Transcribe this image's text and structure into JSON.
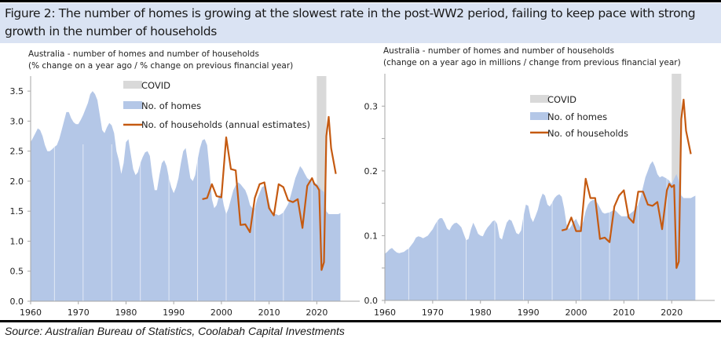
{
  "figure": {
    "title": "Figure 2: The number of homes is growing at the slowest rate in the post-WW2 period, failing to keep pace with strong growth in the number of households",
    "source": "Source: Australian Bureau of Statistics, Coolabah Capital Investments"
  },
  "colors": {
    "homes": "#b4c7e7",
    "households": "#c55a11",
    "covid": "#d9d9d9",
    "title_band": "#dae3f3"
  },
  "chart_data": [
    {
      "type": "area",
      "title": "Australia - number of homes and number of households",
      "subtitle": "(% change on a year ago / % change on previous financial year)",
      "xlabel": "",
      "ylabel": "",
      "xlim": [
        1960,
        2029
      ],
      "ylim": [
        0,
        3.75
      ],
      "xticks": [
        "1960",
        "1970",
        "1980",
        "1990",
        "2000",
        "2010",
        "2020"
      ],
      "yticks": [
        "0.0",
        "0.5",
        "1.0",
        "1.5",
        "2.0",
        "2.5",
        "3.0",
        "3.5"
      ],
      "grid": false,
      "legend": {
        "placement": "top-center",
        "entries": [
          "COVID",
          "No. of homes",
          "No. of households (annual estimates)"
        ]
      },
      "covid_band": [
        2020.0,
        2022.0
      ],
      "series": [
        {
          "name": "No. of homes",
          "type": "area",
          "x": [
            1960,
            1960.5,
            1961,
            1961.5,
            1962,
            1962.5,
            1963,
            1963.5,
            1964,
            1964.5,
            1965,
            1965.5,
            1966,
            1966.5,
            1967,
            1967.5,
            1968,
            1968.5,
            1969,
            1969.5,
            1970,
            1970.5,
            1971,
            1971.5,
            1972,
            1972.5,
            1973,
            1973.5,
            1974,
            1974.5,
            1975,
            1975.5,
            1976,
            1976.5,
            1977,
            1977.5,
            1978,
            1978.5,
            1979,
            1979.5,
            1980,
            1980.5,
            1981,
            1981.5,
            1982,
            1982.5,
            1983,
            1983.5,
            1984,
            1984.5,
            1985,
            1985.5,
            1986,
            1986.5,
            1987,
            1987.5,
            1988,
            1988.5,
            1989,
            1989.5,
            1990,
            1990.5,
            1991,
            1991.5,
            1992,
            1992.5,
            1993,
            1993.5,
            1994,
            1994.5,
            1995,
            1995.5,
            1996,
            1996.5,
            1997,
            1997.5,
            1998,
            1998.5,
            1999,
            1999.5,
            2000,
            2000.5,
            2001,
            2001.5,
            2002,
            2002.5,
            2003,
            2003.5,
            2004,
            2004.5,
            2005,
            2005.5,
            2006,
            2006.5,
            2007,
            2007.5,
            2008,
            2008.5,
            2009,
            2009.5,
            2010,
            2010.5,
            2011,
            2011.5,
            2012,
            2012.5,
            2013,
            2013.5,
            2014,
            2014.5,
            2015,
            2015.5,
            2016,
            2016.5,
            2017,
            2017.5,
            2018,
            2018.5,
            2019,
            2019.5,
            2020,
            2020.5,
            2021,
            2021.5,
            2022,
            2022.5,
            2023,
            2023.5,
            2024,
            2024.5,
            2025
          ],
          "values": [
            2.65,
            2.72,
            2.8,
            2.88,
            2.85,
            2.75,
            2.6,
            2.5,
            2.5,
            2.53,
            2.57,
            2.6,
            2.7,
            2.85,
            3.0,
            3.15,
            3.15,
            3.05,
            2.98,
            2.95,
            2.95,
            3.02,
            3.1,
            3.2,
            3.3,
            3.45,
            3.5,
            3.45,
            3.35,
            3.1,
            2.85,
            2.8,
            2.9,
            2.97,
            2.93,
            2.8,
            2.5,
            2.35,
            2.12,
            2.3,
            2.65,
            2.7,
            2.45,
            2.2,
            2.1,
            2.15,
            2.3,
            2.4,
            2.48,
            2.5,
            2.42,
            2.1,
            1.85,
            1.85,
            2.1,
            2.3,
            2.35,
            2.25,
            2.05,
            1.9,
            1.8,
            1.9,
            2.05,
            2.3,
            2.5,
            2.55,
            2.3,
            2.05,
            2.0,
            2.1,
            2.35,
            2.55,
            2.68,
            2.7,
            2.6,
            2.2,
            1.7,
            1.55,
            1.6,
            1.75,
            1.82,
            1.6,
            1.45,
            1.55,
            1.7,
            1.85,
            1.93,
            1.98,
            1.95,
            1.9,
            1.85,
            1.75,
            1.6,
            1.55,
            1.55,
            1.7,
            1.8,
            1.9,
            1.92,
            1.82,
            1.65,
            1.5,
            1.45,
            1.45,
            1.43,
            1.45,
            1.48,
            1.55,
            1.62,
            1.75,
            1.9,
            2.05,
            2.15,
            2.25,
            2.2,
            2.12,
            2.05,
            2.02,
            2.0,
            1.98,
            1.95,
            1.92,
            1.85,
            1.82,
            1.5,
            1.45,
            1.45,
            1.45,
            1.45,
            1.45,
            1.47
          ]
        },
        {
          "name": "No. of households (annual estimates)",
          "type": "line",
          "x": [
            1996,
            1997,
            1998,
            1999,
            2000,
            2001,
            2002,
            2003,
            2004,
            2005,
            2006,
            2007,
            2008,
            2009,
            2010,
            2011,
            2012,
            2013,
            2014,
            2015,
            2016,
            2017,
            2018,
            2019,
            2019.5,
            2020,
            2020.5,
            2021,
            2021.5,
            2022,
            2022.5,
            2023,
            2024
          ],
          "values": [
            1.7,
            1.72,
            1.95,
            1.75,
            1.73,
            2.73,
            2.2,
            2.18,
            1.27,
            1.28,
            1.15,
            1.72,
            1.95,
            1.98,
            1.55,
            1.43,
            1.95,
            1.9,
            1.68,
            1.65,
            1.7,
            1.22,
            1.92,
            2.05,
            1.95,
            1.92,
            1.85,
            0.52,
            0.65,
            2.75,
            3.07,
            2.55,
            2.12
          ]
        }
      ]
    },
    {
      "type": "area",
      "title": "Australia - number of homes and number of households",
      "subtitle": "(change on a year ago in millions / change from previous financial year)",
      "xlabel": "",
      "ylabel": "",
      "xlim": [
        1960,
        2029
      ],
      "ylim": [
        0,
        0.35
      ],
      "xticks": [
        "1960",
        "1970",
        "1980",
        "1990",
        "2000",
        "2010",
        "2020"
      ],
      "yticks": [
        "0.0",
        "0.1",
        "0.2",
        "0.3"
      ],
      "minor_yticks": [
        0.05,
        0.15,
        0.25
      ],
      "grid": false,
      "legend": {
        "placement": "top-center",
        "entries": [
          "COVID",
          "No. of homes",
          "No. of households"
        ]
      },
      "covid_band": [
        2020.0,
        2022.0
      ],
      "series": [
        {
          "name": "No. of homes",
          "type": "area",
          "x": [
            1960,
            1960.5,
            1961,
            1961.5,
            1962,
            1962.5,
            1963,
            1963.5,
            1964,
            1964.5,
            1965,
            1965.5,
            1966,
            1966.5,
            1967,
            1967.5,
            1968,
            1968.5,
            1969,
            1969.5,
            1970,
            1970.5,
            1971,
            1971.5,
            1972,
            1972.5,
            1973,
            1973.5,
            1974,
            1974.5,
            1975,
            1975.5,
            1976,
            1976.5,
            1977,
            1977.5,
            1978,
            1978.5,
            1979,
            1979.5,
            1980,
            1980.5,
            1981,
            1981.5,
            1982,
            1982.5,
            1983,
            1983.5,
            1984,
            1984.5,
            1985,
            1985.5,
            1986,
            1986.5,
            1987,
            1987.5,
            1988,
            1988.5,
            1989,
            1989.5,
            1990,
            1990.5,
            1991,
            1991.5,
            1992,
            1992.5,
            1993,
            1993.5,
            1994,
            1994.5,
            1995,
            1995.5,
            1996,
            1996.5,
            1997,
            1997.5,
            1998,
            1998.5,
            1999,
            1999.5,
            2000,
            2000.5,
            2001,
            2001.5,
            2002,
            2002.5,
            2003,
            2003.5,
            2004,
            2004.5,
            2005,
            2005.5,
            2006,
            2006.5,
            2007,
            2007.5,
            2008,
            2008.5,
            2009,
            2009.5,
            2010,
            2010.5,
            2011,
            2011.5,
            2012,
            2012.5,
            2013,
            2013.5,
            2014,
            2014.5,
            2015,
            2015.5,
            2016,
            2016.5,
            2017,
            2017.5,
            2018,
            2018.5,
            2019,
            2019.5,
            2020,
            2020.5,
            2021,
            2021.5,
            2022,
            2022.5,
            2023,
            2023.5,
            2024,
            2024.5,
            2025
          ],
          "values": [
            0.072,
            0.075,
            0.079,
            0.081,
            0.077,
            0.074,
            0.073,
            0.074,
            0.075,
            0.078,
            0.08,
            0.085,
            0.09,
            0.097,
            0.099,
            0.098,
            0.096,
            0.098,
            0.1,
            0.105,
            0.11,
            0.117,
            0.123,
            0.127,
            0.127,
            0.12,
            0.111,
            0.108,
            0.115,
            0.119,
            0.12,
            0.117,
            0.113,
            0.103,
            0.093,
            0.095,
            0.11,
            0.12,
            0.112,
            0.103,
            0.1,
            0.099,
            0.107,
            0.113,
            0.117,
            0.122,
            0.124,
            0.118,
            0.097,
            0.094,
            0.108,
            0.12,
            0.125,
            0.123,
            0.114,
            0.104,
            0.102,
            0.108,
            0.13,
            0.148,
            0.146,
            0.128,
            0.121,
            0.13,
            0.14,
            0.155,
            0.165,
            0.162,
            0.148,
            0.145,
            0.151,
            0.158,
            0.162,
            0.164,
            0.16,
            0.142,
            0.118,
            0.11,
            0.115,
            0.122,
            0.126,
            0.118,
            0.112,
            0.122,
            0.138,
            0.148,
            0.153,
            0.155,
            0.155,
            0.15,
            0.143,
            0.136,
            0.134,
            0.135,
            0.136,
            0.138,
            0.14,
            0.137,
            0.133,
            0.13,
            0.13,
            0.13,
            0.132,
            0.135,
            0.138,
            0.143,
            0.148,
            0.16,
            0.175,
            0.19,
            0.2,
            0.21,
            0.215,
            0.207,
            0.195,
            0.19,
            0.192,
            0.19,
            0.188,
            0.185,
            0.18,
            0.188,
            0.195,
            0.185,
            0.162,
            0.158,
            0.158,
            0.158,
            0.158,
            0.16,
            0.162
          ]
        },
        {
          "name": "No. of households",
          "type": "line",
          "x": [
            1997,
            1998,
            1999,
            2000,
            2001,
            2002,
            2003,
            2004,
            2005,
            2006,
            2007,
            2008,
            2009,
            2010,
            2011,
            2012,
            2013,
            2014,
            2015,
            2016,
            2017,
            2018,
            2019,
            2019.5,
            2020,
            2020.5,
            2021,
            2021.5,
            2022,
            2022.5,
            2023,
            2024
          ],
          "values": [
            0.108,
            0.11,
            0.128,
            0.107,
            0.107,
            0.188,
            0.158,
            0.158,
            0.095,
            0.097,
            0.09,
            0.145,
            0.162,
            0.17,
            0.128,
            0.12,
            0.168,
            0.168,
            0.148,
            0.146,
            0.152,
            0.11,
            0.17,
            0.18,
            0.175,
            0.178,
            0.05,
            0.06,
            0.28,
            0.31,
            0.262,
            0.226
          ]
        }
      ]
    }
  ]
}
